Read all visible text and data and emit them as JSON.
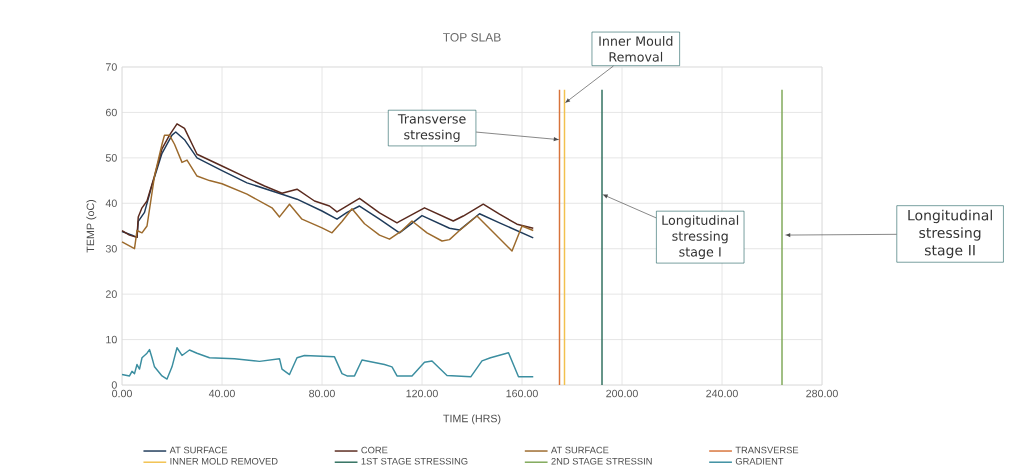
{
  "chart_data": {
    "type": "line",
    "title": "TOP SLAB",
    "xlabel": "TIME (HRS)",
    "ylabel": "TEMP (oC)",
    "xlim": [
      0,
      280
    ],
    "ylim": [
      0,
      70
    ],
    "xticks": [
      {
        "value": 0,
        "label": "0.00"
      },
      {
        "value": 40,
        "label": "40.00"
      },
      {
        "value": 80,
        "label": "80.00"
      },
      {
        "value": 120,
        "label": "120.00"
      },
      {
        "value": 160,
        "label": "160.00"
      },
      {
        "value": 200,
        "label": "200.00"
      },
      {
        "value": 240,
        "label": "240.00"
      },
      {
        "value": 280,
        "label": "280.00"
      }
    ],
    "yticks": [
      0,
      10,
      20,
      30,
      40,
      50,
      60,
      70
    ],
    "grid": true,
    "legend": "bottom",
    "series": [
      {
        "name": "AT SURFACE",
        "color": "#1f3b5a",
        "x": [
          0,
          4,
          6,
          6.5,
          9,
          12,
          16,
          20,
          21.5,
          25,
          30,
          40,
          50,
          64,
          70,
          80,
          86,
          90,
          95,
          103,
          111,
          120,
          131,
          135,
          143,
          151,
          164.5
        ],
        "values": [
          33.8,
          33,
          32.5,
          36,
          38,
          44,
          51,
          55,
          55.7,
          54,
          50,
          47.2,
          44.5,
          42,
          40.9,
          38.3,
          36.5,
          38,
          39.4,
          36.5,
          33.5,
          37.3,
          34.5,
          34.1,
          37.7,
          35.7,
          32.4
        ]
      },
      {
        "name": "CORE",
        "color": "#5a2a1e",
        "x": [
          0,
          3,
          6,
          6.5,
          8,
          10,
          13,
          16,
          19,
          22,
          25,
          30,
          40,
          50,
          57,
          64,
          70,
          77,
          83,
          86,
          95,
          103,
          110,
          111,
          121,
          132.5,
          136.5,
          144.5,
          151,
          158,
          164.5
        ],
        "values": [
          34,
          33,
          32.5,
          37,
          39,
          40.5,
          46,
          52,
          55,
          57.5,
          56.5,
          50.8,
          48.2,
          45.6,
          43.8,
          42.2,
          43.1,
          40.5,
          39.4,
          38.1,
          41.1,
          37.9,
          35.7,
          36,
          39,
          36.1,
          37.2,
          39.8,
          37.6,
          35.4,
          34.5
        ]
      },
      {
        "name": "AT SURFACE",
        "color": "#9c6a2c",
        "x": [
          0,
          5,
          6,
          8,
          10,
          13,
          16,
          17,
          19,
          21,
          24,
          26,
          30,
          35,
          40,
          50,
          60,
          63,
          67,
          72,
          80,
          84,
          88,
          92,
          97,
          103,
          107,
          112,
          116,
          122,
          128,
          131,
          135,
          142,
          156,
          160,
          164.5
        ],
        "values": [
          31.5,
          30,
          34,
          33.5,
          35,
          46,
          53,
          55,
          55,
          53,
          49,
          49.5,
          46,
          45,
          44.3,
          42,
          39,
          37,
          39.8,
          36.5,
          34.6,
          33.5,
          36,
          38.8,
          35.5,
          33,
          32.1,
          34,
          36.1,
          33.5,
          31.7,
          32,
          34,
          37.2,
          29.5,
          35,
          34
        ]
      },
      {
        "name": "TRANSVERSE",
        "color": "#d8733a",
        "x": [
          175,
          175
        ],
        "values": [
          0,
          65
        ]
      },
      {
        "name": "INNER MOLD REMOVED",
        "color": "#f2c14e",
        "x": [
          177,
          177
        ],
        "values": [
          0,
          65
        ]
      },
      {
        "name": "1ST STAGE STRESSING",
        "color": "#2f6f5e",
        "x": [
          192,
          192
        ],
        "values": [
          0,
          65
        ]
      },
      {
        "name": "2ND STAGE STRESSIN",
        "color": "#7fa858",
        "x": [
          264,
          264
        ],
        "values": [
          0,
          65
        ]
      },
      {
        "name": "GRADIENT",
        "color": "#3b8ea0",
        "x": [
          0,
          3,
          4,
          5,
          6,
          7,
          8,
          10,
          11,
          12,
          13,
          16,
          18,
          20,
          22,
          24,
          27,
          30,
          35,
          45,
          55,
          63,
          64,
          67,
          70,
          73,
          85,
          88,
          90,
          93,
          96,
          105,
          108,
          110,
          116,
          121,
          124,
          130,
          139.5,
          144,
          147.4,
          154.6,
          158.6,
          164.5
        ],
        "values": [
          2.3,
          2,
          3,
          2.5,
          4.5,
          3.5,
          6,
          7,
          7.8,
          6,
          4,
          2,
          1.3,
          4,
          8.2,
          6.5,
          7.7,
          7,
          6,
          5.8,
          5.2,
          5.8,
          3.5,
          2.3,
          6,
          6.5,
          6.2,
          2.5,
          2,
          2,
          5.5,
          4.5,
          4,
          2,
          2,
          5,
          5.3,
          2.1,
          1.8,
          5.3,
          6,
          7.1,
          1.8,
          1.8
        ]
      }
    ],
    "annotations": [
      {
        "text": "Transverse stressing",
        "x": 175,
        "y": 54
      },
      {
        "text": "Inner Mould Removal",
        "x": 177,
        "y": 62
      },
      {
        "text": "Longitudinal stressing stage I",
        "x": 192,
        "y": 42
      },
      {
        "text": "Longitudinal stressing stage II",
        "x": 265,
        "y": 33
      }
    ]
  }
}
